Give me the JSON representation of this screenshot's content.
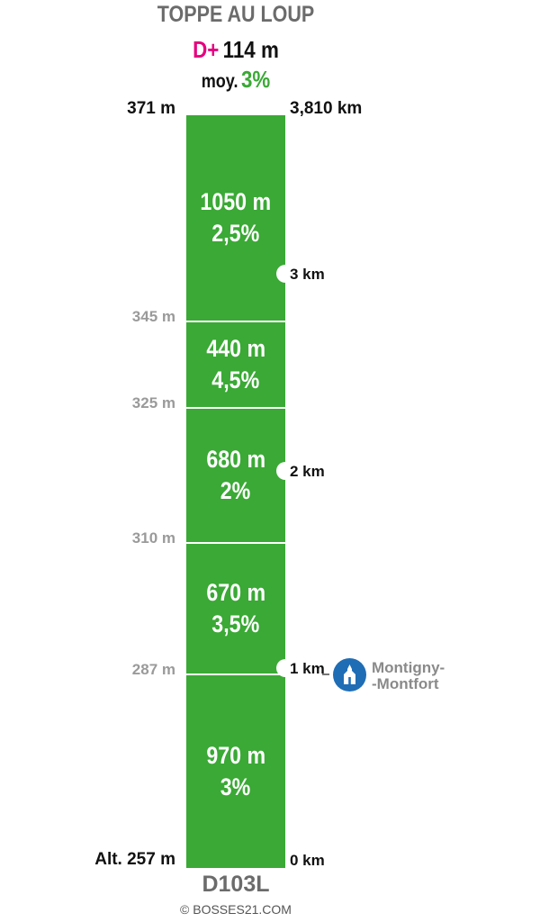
{
  "header": {
    "title": "TOPPE AU LOUP",
    "dplus_label": "D+",
    "dplus_value": "114 m",
    "avg_label": "moy.",
    "avg_value": "3%"
  },
  "profile": {
    "top_altitude": "371 m",
    "top_distance": "3,810 km",
    "base_altitude": "Alt. 257 m",
    "base_distance": "0 km",
    "segments": [
      {
        "length": "1050 m",
        "grade": "2,5%"
      },
      {
        "length": "440 m",
        "grade": "4,5%"
      },
      {
        "length": "680 m",
        "grade": "2%"
      },
      {
        "length": "670 m",
        "grade": "3,5%"
      },
      {
        "length": "970 m",
        "grade": "3%"
      }
    ],
    "altitude_marks": [
      "345 m",
      "325 m",
      "310 m",
      "287 m"
    ],
    "km_marks": [
      "3 km",
      "2 km",
      "1 km"
    ]
  },
  "town": {
    "name": "Montigny-\n-Montfort",
    "icon": "church-icon"
  },
  "footer": {
    "road": "D103L",
    "copyright": "© BOSSES21.COM"
  },
  "colors": {
    "bar": "#3aa935",
    "dplus": "#e5007e",
    "avg": "#3aa935",
    "town_icon": "#1f6db5"
  }
}
